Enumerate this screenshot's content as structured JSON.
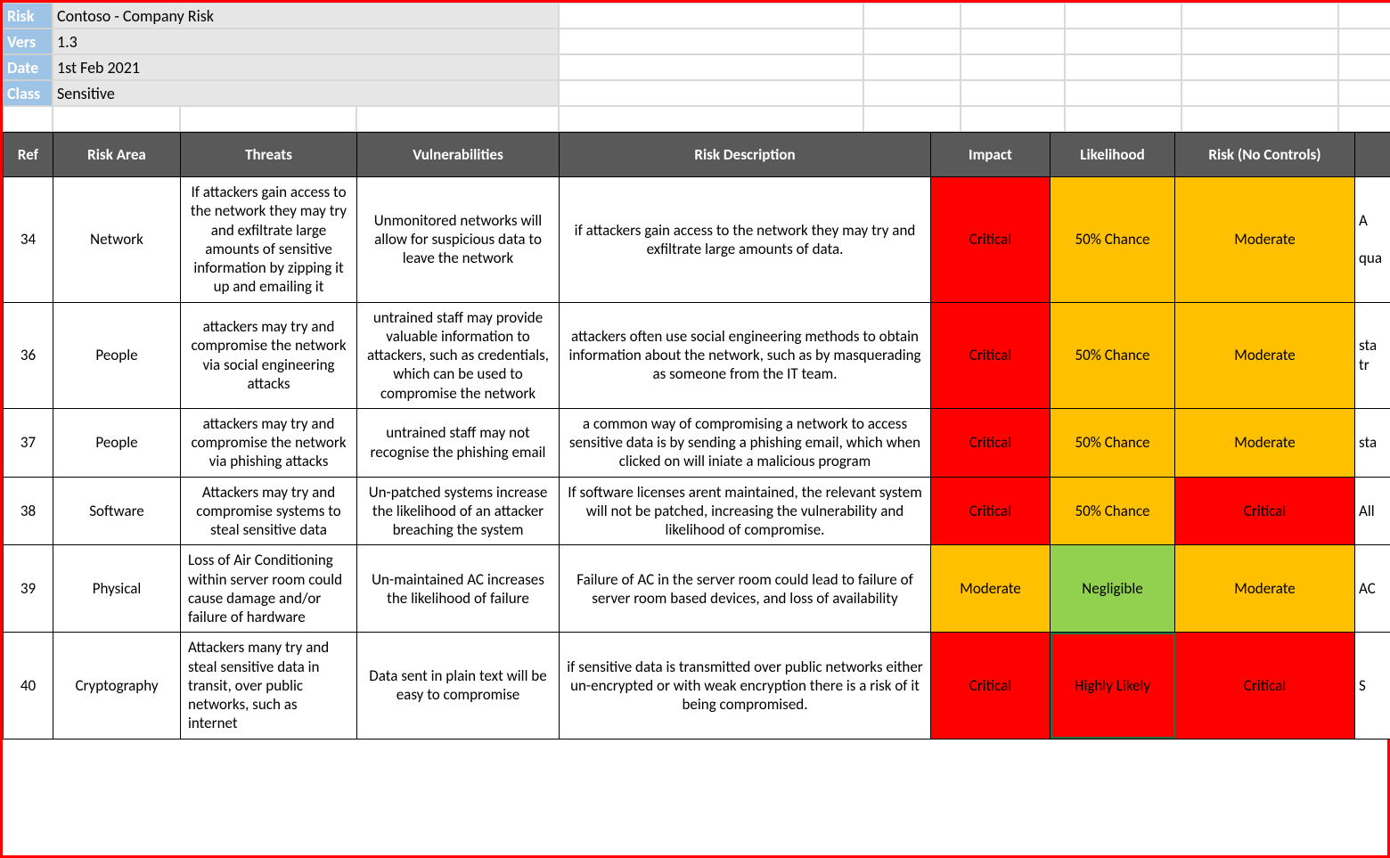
{
  "meta": {
    "labels": {
      "risk": "Risk",
      "vers": "Vers",
      "date": "Date",
      "class": "Class"
    },
    "risk_register": "Contoso - Company Risk",
    "version": "1.3",
    "date": "1st Feb 2021",
    "classification": "Sensitive"
  },
  "columns": {
    "ref": "Ref",
    "risk_area": "Risk Area",
    "threats": "Threats",
    "vulnerabilities": "Vulnerabilities",
    "risk_description": "Risk Description",
    "impact": "Impact",
    "likelihood": "Likelihood",
    "risk_no_controls": "Risk (No Controls)",
    "tail": ""
  },
  "status_colors": {
    "Critical": "#ff0000",
    "Moderate": "#ffc000",
    "Negligible": "#92d050",
    "50% Chance": "#ffc000",
    "Highly Likely": "#ff0000"
  },
  "rows": [
    {
      "ref": "34",
      "risk_area": "Network",
      "threats": "If attackers gain access to the network they may try and exfiltrate large amounts of sensitive information by zipping it up and emailing it",
      "vulnerabilities": "Unmonitored networks will allow for suspicious data to leave the network",
      "risk_description": "if attackers gain access to the network they may try and exfiltrate large amounts of data.",
      "impact": "Critical",
      "likelihood": "50% Chance",
      "risk_no_controls": "Moderate",
      "tail": "A\n\nqua",
      "threats_align": "center"
    },
    {
      "ref": "36",
      "risk_area": "People",
      "threats": "attackers may try and compromise the network via social engineering attacks",
      "vulnerabilities": "untrained staff may provide valuable information to attackers, such as credentials, which can be used to compromise the network",
      "risk_description": "attackers often use social engineering methods to obtain information about the network, such as by masquerading as someone from the IT team.",
      "impact": "Critical",
      "likelihood": "50% Chance",
      "risk_no_controls": "Moderate",
      "tail": "sta\ntr",
      "threats_align": "center"
    },
    {
      "ref": "37",
      "risk_area": "People",
      "threats": "attackers may try and compromise the network via phishing attacks",
      "vulnerabilities": "untrained staff may not recognise the phishing email",
      "risk_description": "a common way of compromising a network to access sensitive data is by sending a phishing email, which when clicked on will iniate a malicious program",
      "impact": "Critical",
      "likelihood": "50% Chance",
      "risk_no_controls": "Moderate",
      "tail": "sta",
      "threats_align": "center"
    },
    {
      "ref": "38",
      "risk_area": "Software",
      "threats": "Attackers may try and compromise systems to steal sensitive data",
      "vulnerabilities": "Un-patched systems increase the likelihood of an attacker breaching the system",
      "risk_description": "If software licenses arent maintained, the relevant system will not be patched, increasing the vulnerability and likelihood of compromise.",
      "impact": "Critical",
      "likelihood": "50% Chance",
      "risk_no_controls": "Critical",
      "tail": "All",
      "threats_align": "center"
    },
    {
      "ref": "39",
      "risk_area": "Physical",
      "threats": "Loss of Air Conditioning within server room could cause damage and/or failure of hardware",
      "vulnerabilities": "Un-maintained AC increases the likelihood of failure",
      "risk_description": "Failure of AC in the server room could lead to failure of server room based devices, and loss of availability",
      "impact": "Moderate",
      "likelihood": "Negligible",
      "risk_no_controls": "Moderate",
      "tail": "AC",
      "threats_align": "left"
    },
    {
      "ref": "40",
      "risk_area": "Cryptography",
      "threats": "Attackers many try and steal sensitive data in transit, over public networks, such as internet",
      "vulnerabilities": "Data sent in plain text will be easy to compromise",
      "risk_description": "if sensitive data is transmitted over public networks either un-encrypted or with weak encryption there is a risk of it being compromised.",
      "impact": "Critical",
      "likelihood": "Highly Likely",
      "risk_no_controls": "Critical",
      "tail": "S",
      "threats_align": "left"
    }
  ],
  "selected_cell": {
    "row_index": 5,
    "field": "likelihood"
  }
}
